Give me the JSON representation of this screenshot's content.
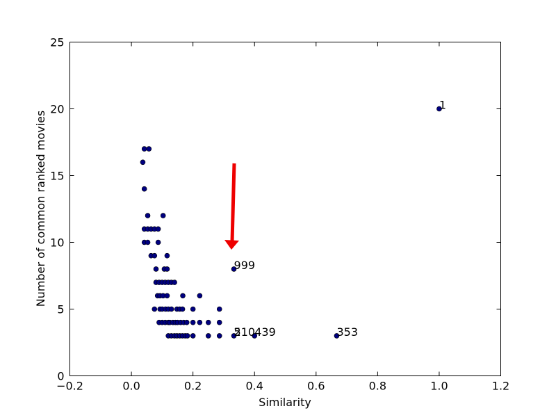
{
  "chart_data": {
    "type": "scatter",
    "xlabel": "Similarity",
    "ylabel": "Number of common ranked movies",
    "xlim": [
      -0.2,
      1.2
    ],
    "ylim": [
      0,
      25
    ],
    "xticks": [
      {
        "value": -0.2,
        "label": "−0.2"
      },
      {
        "value": 0,
        "label": "0.0"
      },
      0.2,
      0.4,
      0.6,
      0.8,
      {
        "value": 1,
        "label": "1.0"
      },
      1.2
    ],
    "yticks": [
      0,
      5,
      10,
      15,
      20,
      25
    ],
    "color": "#000080",
    "x": [
      1.0,
      0.333,
      0.037,
      0.042,
      0.057,
      0.042,
      0.053,
      0.103,
      0.042,
      0.053,
      0.064,
      0.075,
      0.087,
      0.042,
      0.053,
      0.087,
      0.064,
      0.075,
      0.116,
      0.08,
      0.107,
      0.116,
      0.08,
      0.09,
      0.1,
      0.11,
      0.12,
      0.13,
      0.14,
      0.085,
      0.093,
      0.103,
      0.116,
      0.167,
      0.222,
      0.075,
      0.093,
      0.1,
      0.111,
      0.12,
      0.13,
      0.148,
      0.157,
      0.166,
      0.2,
      0.286,
      0.09,
      0.1,
      0.11,
      0.12,
      0.125,
      0.135,
      0.143,
      0.15,
      0.16,
      0.17,
      0.18,
      0.2,
      0.222,
      0.25,
      0.286,
      0.12,
      0.13,
      0.14,
      0.148,
      0.157,
      0.166,
      0.175,
      0.182,
      0.2,
      0.25,
      0.286,
      0.333,
      0.4,
      0.667
    ],
    "y": [
      20,
      8,
      16,
      17,
      17,
      14,
      12,
      12,
      11,
      11,
      11,
      11,
      11,
      10,
      10,
      10,
      9,
      9,
      9,
      8,
      8,
      8,
      7,
      7,
      7,
      7,
      7,
      7,
      7,
      6,
      6,
      6,
      6,
      6,
      6,
      5,
      5,
      5,
      5,
      5,
      5,
      5,
      5,
      5,
      5,
      5,
      4,
      4,
      4,
      4,
      4,
      4,
      4,
      4,
      4,
      4,
      4,
      4,
      4,
      4,
      4,
      3,
      3,
      3,
      3,
      3,
      3,
      3,
      3,
      3,
      3,
      3,
      3,
      3,
      3
    ],
    "annotations": [
      {
        "text": "1",
        "x": 1.0,
        "y": 20
      },
      {
        "text": "999",
        "x": 0.333,
        "y": 8
      },
      {
        "text": "5",
        "x": 0.333,
        "y": 3
      },
      {
        "text": "210",
        "x": 0.333,
        "y": 3
      },
      {
        "text": "439",
        "x": 0.4,
        "y": 3
      },
      {
        "text": "353",
        "x": 0.667,
        "y": 3
      }
    ]
  }
}
